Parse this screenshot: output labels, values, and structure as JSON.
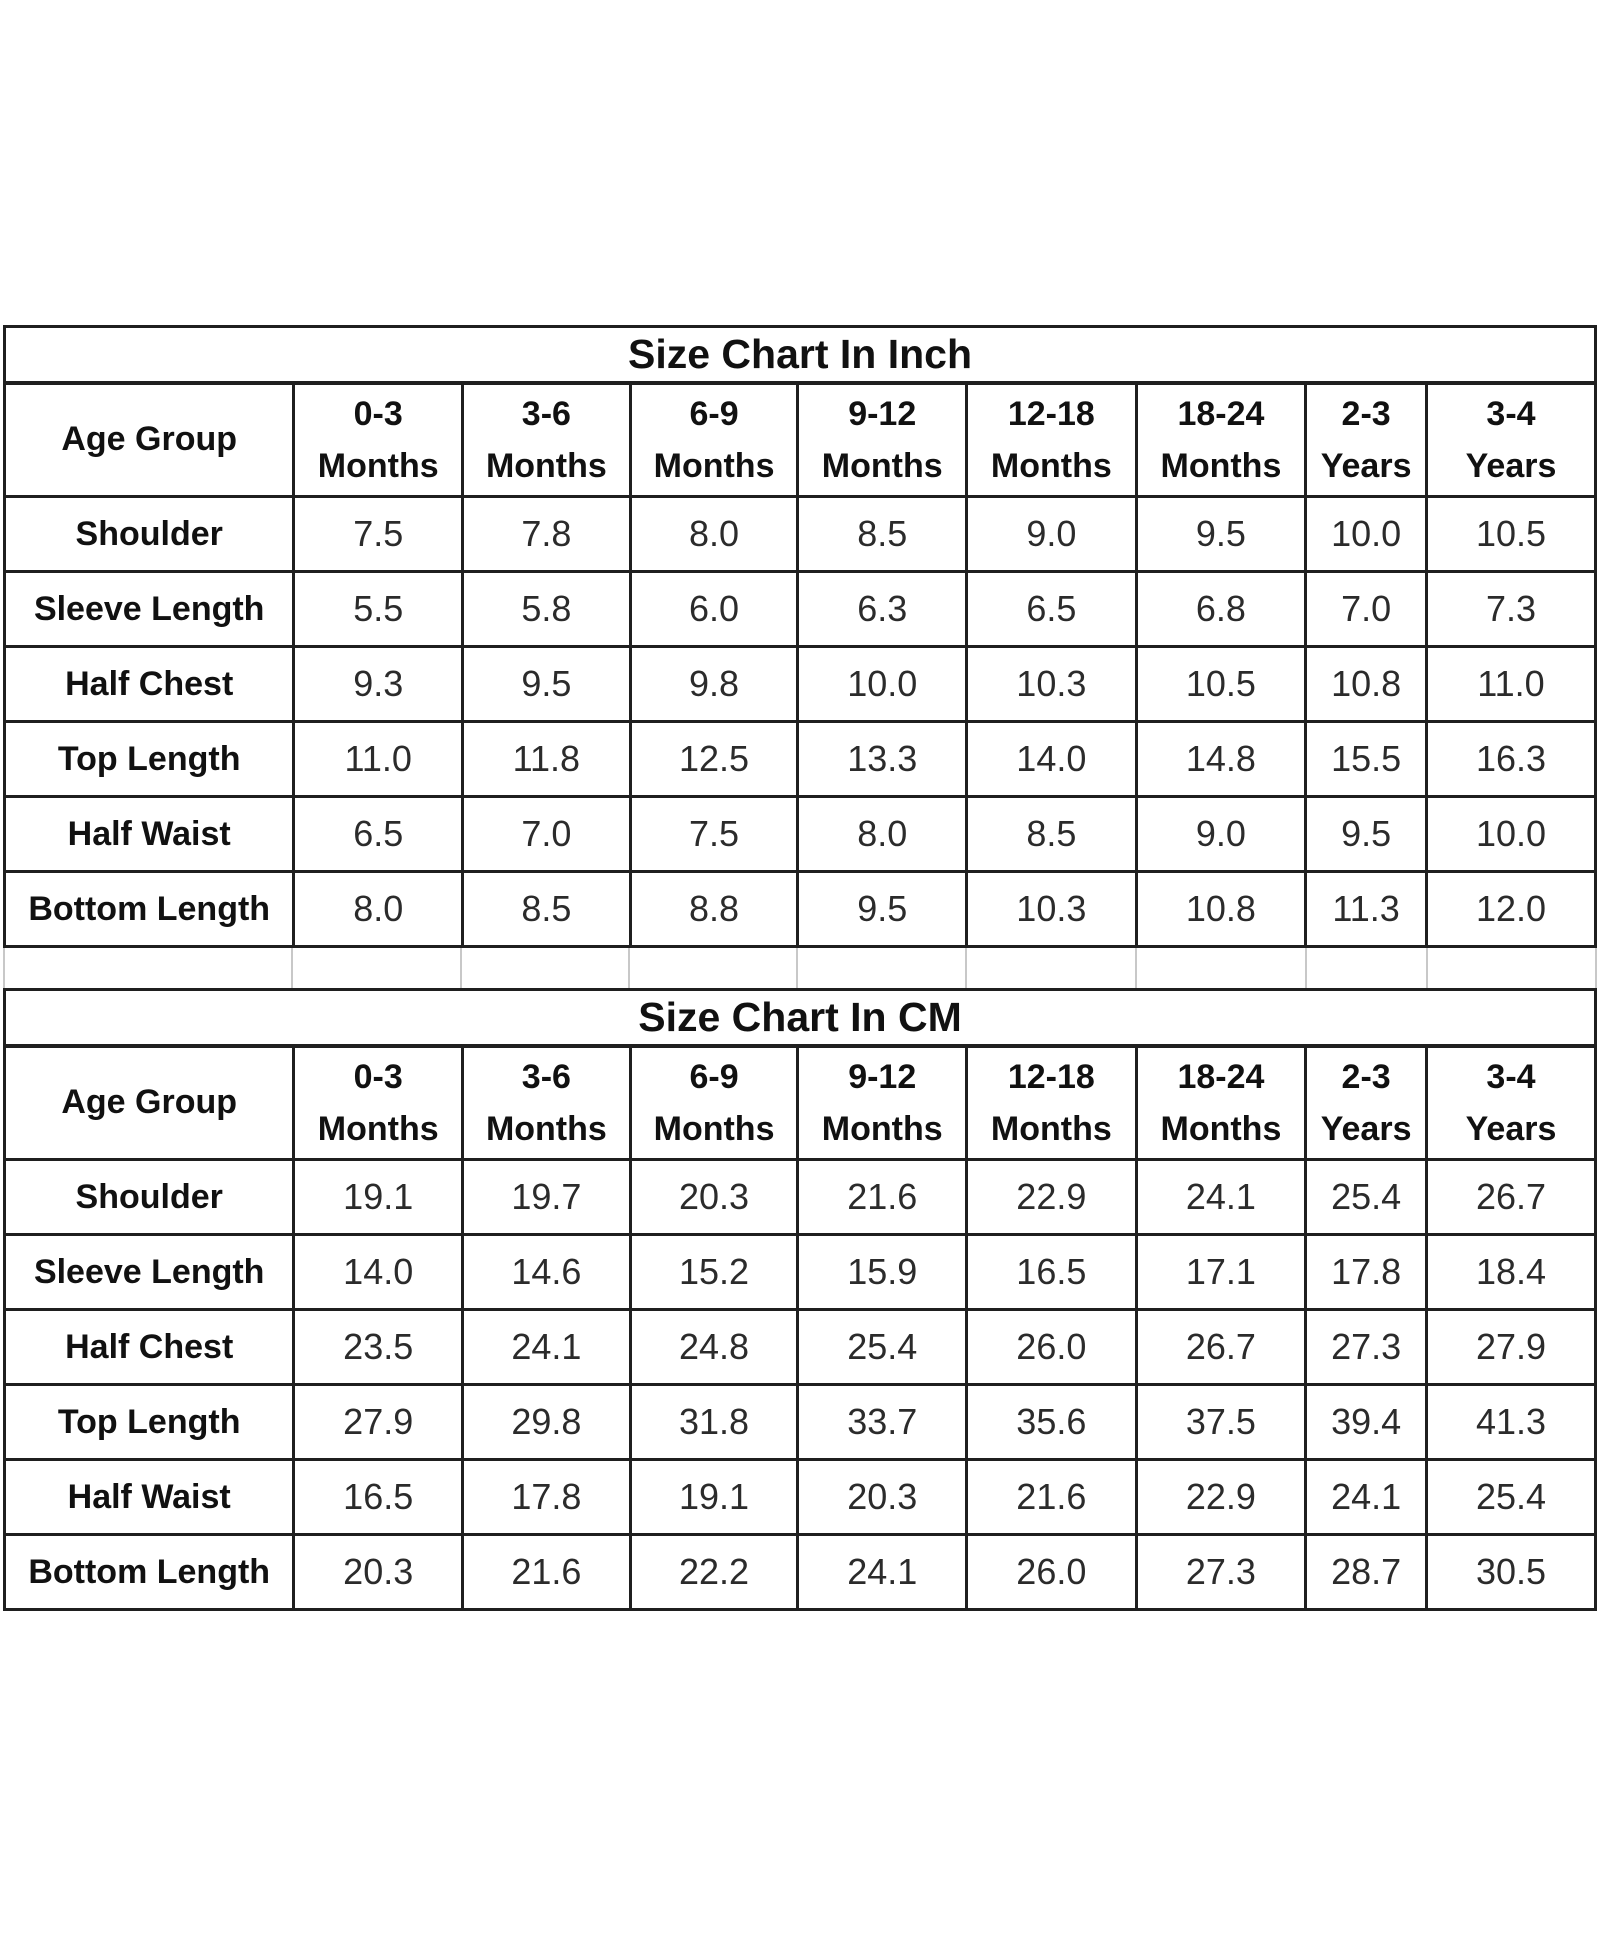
{
  "styles": {
    "background": "#ffffff",
    "border_dark": "#1f1f1f",
    "border_light": "#c8c8c8",
    "label_text": "#111111",
    "value_text": "#2b2b2b"
  },
  "chart_data": [
    {
      "type": "table",
      "title": "Size Chart In Inch",
      "corner_header": "Age Group",
      "column_headers": [
        "0-3 Months",
        "3-6 Months",
        "6-9 Months",
        "9-12 Months",
        "12-18 Months",
        "18-24 Months",
        "2-3 Years",
        "3-4 Years"
      ],
      "rows": [
        {
          "label": "Shoulder",
          "values": [
            "7.5",
            "7.8",
            "8.0",
            "8.5",
            "9.0",
            "9.5",
            "10.0",
            "10.5"
          ]
        },
        {
          "label": "Sleeve Length",
          "values": [
            "5.5",
            "5.8",
            "6.0",
            "6.3",
            "6.5",
            "6.8",
            "7.0",
            "7.3"
          ]
        },
        {
          "label": "Half Chest",
          "values": [
            "9.3",
            "9.5",
            "9.8",
            "10.0",
            "10.3",
            "10.5",
            "10.8",
            "11.0"
          ]
        },
        {
          "label": "Top Length",
          "values": [
            "11.0",
            "11.8",
            "12.5",
            "13.3",
            "14.0",
            "14.8",
            "15.5",
            "16.3"
          ]
        },
        {
          "label": "Half Waist",
          "values": [
            "6.5",
            "7.0",
            "7.5",
            "8.0",
            "8.5",
            "9.0",
            "9.5",
            "10.0"
          ]
        },
        {
          "label": "Bottom Length",
          "values": [
            "8.0",
            "8.5",
            "8.8",
            "9.5",
            "10.3",
            "10.8",
            "11.3",
            "12.0"
          ]
        }
      ]
    },
    {
      "type": "table",
      "title": "Size Chart In CM",
      "corner_header": "Age Group",
      "column_headers": [
        "0-3 Months",
        "3-6 Months",
        "6-9 Months",
        "9-12 Months",
        "12-18 Months",
        "18-24 Months",
        "2-3 Years",
        "3-4 Years"
      ],
      "rows": [
        {
          "label": "Shoulder",
          "values": [
            "19.1",
            "19.7",
            "20.3",
            "21.6",
            "22.9",
            "24.1",
            "25.4",
            "26.7"
          ]
        },
        {
          "label": "Sleeve Length",
          "values": [
            "14.0",
            "14.6",
            "15.2",
            "15.9",
            "16.5",
            "17.1",
            "17.8",
            "18.4"
          ]
        },
        {
          "label": "Half Chest",
          "values": [
            "23.5",
            "24.1",
            "24.8",
            "25.4",
            "26.0",
            "26.7",
            "27.3",
            "27.9"
          ]
        },
        {
          "label": "Top Length",
          "values": [
            "27.9",
            "29.8",
            "31.8",
            "33.7",
            "35.6",
            "37.5",
            "39.4",
            "41.3"
          ]
        },
        {
          "label": "Half Waist",
          "values": [
            "16.5",
            "17.8",
            "19.1",
            "20.3",
            "21.6",
            "22.9",
            "24.1",
            "25.4"
          ]
        },
        {
          "label": "Bottom Length",
          "values": [
            "20.3",
            "21.6",
            "22.2",
            "24.1",
            "26.0",
            "27.3",
            "28.7",
            "30.5"
          ]
        }
      ]
    }
  ]
}
